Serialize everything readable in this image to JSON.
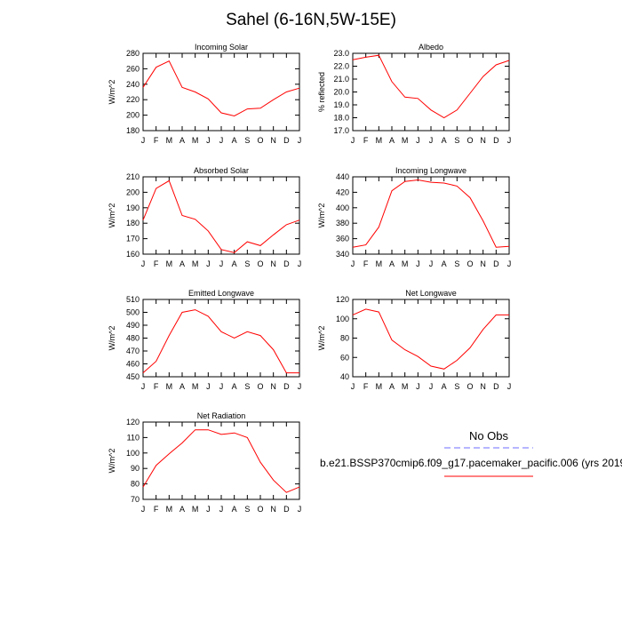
{
  "title": "Sahel (6-16N,5W-15E)",
  "legend": {
    "obs_label": "No Obs",
    "obs_color": "#8a8aff",
    "model_label": "b.e21.BSSP370cmip6.f09_g17.pacemaker_pacific.006 (yrs 2019",
    "model_color": "#ff0000"
  },
  "chart_data": [
    {
      "type": "line",
      "title": "Incoming Solar",
      "ylabel": "W/m^2",
      "categories": [
        "J",
        "F",
        "M",
        "A",
        "M",
        "J",
        "J",
        "A",
        "S",
        "O",
        "N",
        "D",
        "J"
      ],
      "ylim": [
        180,
        280
      ],
      "yticks": [
        "180",
        "200",
        "220",
        "240",
        "260",
        "280"
      ],
      "series": [
        {
          "values": [
            236,
            262,
            270,
            236,
            230,
            221,
            203,
            199,
            208,
            209,
            220,
            230,
            235
          ]
        }
      ]
    },
    {
      "type": "line",
      "title": "Albedo",
      "ylabel": "% reflected",
      "categories": [
        "J",
        "F",
        "M",
        "A",
        "M",
        "J",
        "J",
        "A",
        "S",
        "O",
        "N",
        "D",
        "J"
      ],
      "ylim": [
        17.0,
        23.0
      ],
      "yticks": [
        "17.0",
        "18.0",
        "19.0",
        "20.0",
        "21.0",
        "22.0",
        "23.0"
      ],
      "series": [
        {
          "values": [
            22.5,
            22.7,
            22.85,
            20.8,
            19.6,
            19.5,
            18.6,
            18.0,
            18.6,
            19.9,
            21.2,
            22.1,
            22.45
          ]
        }
      ]
    },
    {
      "type": "line",
      "title": "Absorbed Solar",
      "ylabel": "W/m^2",
      "categories": [
        "J",
        "F",
        "M",
        "A",
        "M",
        "J",
        "J",
        "A",
        "S",
        "O",
        "N",
        "D",
        "J"
      ],
      "ylim": [
        160,
        210
      ],
      "yticks": [
        "160",
        "170",
        "180",
        "190",
        "200",
        "210"
      ],
      "series": [
        {
          "values": [
            182,
            202.5,
            207.5,
            185,
            182.5,
            175,
            163,
            161,
            168,
            165.5,
            172.5,
            179,
            182
          ]
        }
      ]
    },
    {
      "type": "line",
      "title": "Incoming Longwave",
      "ylabel": "W/m^2",
      "categories": [
        "J",
        "F",
        "M",
        "A",
        "M",
        "J",
        "J",
        "A",
        "S",
        "O",
        "N",
        "D",
        "J"
      ],
      "ylim": [
        340,
        440
      ],
      "yticks": [
        "340",
        "360",
        "380",
        "400",
        "420",
        "440"
      ],
      "series": [
        {
          "values": [
            349,
            352,
            375,
            422,
            434,
            436,
            433,
            432,
            428,
            413,
            383,
            349,
            350
          ]
        }
      ]
    },
    {
      "type": "line",
      "title": "Emitted Longwave",
      "ylabel": "W/m^2",
      "categories": [
        "J",
        "F",
        "M",
        "A",
        "M",
        "J",
        "J",
        "A",
        "S",
        "O",
        "N",
        "D",
        "J"
      ],
      "ylim": [
        450,
        510
      ],
      "yticks": [
        "450",
        "460",
        "470",
        "480",
        "490",
        "500",
        "510"
      ],
      "series": [
        {
          "values": [
            453,
            462,
            482,
            500,
            502,
            497,
            485,
            480,
            485,
            482,
            471,
            453,
            453
          ]
        }
      ]
    },
    {
      "type": "line",
      "title": "Net Longwave",
      "ylabel": "W/m^2",
      "categories": [
        "J",
        "F",
        "M",
        "A",
        "M",
        "J",
        "J",
        "A",
        "S",
        "O",
        "N",
        "D",
        "J"
      ],
      "ylim": [
        40,
        120
      ],
      "yticks": [
        "40",
        "60",
        "80",
        "100",
        "120"
      ],
      "series": [
        {
          "values": [
            104,
            110,
            107,
            78,
            68,
            61,
            51,
            48,
            57,
            70,
            89,
            104,
            104
          ]
        }
      ]
    },
    {
      "type": "line",
      "title": "Net Radiation",
      "ylabel": "W/m^2",
      "categories": [
        "J",
        "F",
        "M",
        "A",
        "M",
        "J",
        "J",
        "A",
        "S",
        "O",
        "N",
        "D",
        "J"
      ],
      "ylim": [
        70,
        120
      ],
      "yticks": [
        "70",
        "80",
        "90",
        "100",
        "110",
        "120"
      ],
      "series": [
        {
          "values": [
            78,
            92,
            99.5,
            106.5,
            115,
            115,
            112,
            113,
            110,
            94,
            82.5,
            74.5,
            78
          ]
        }
      ]
    }
  ]
}
